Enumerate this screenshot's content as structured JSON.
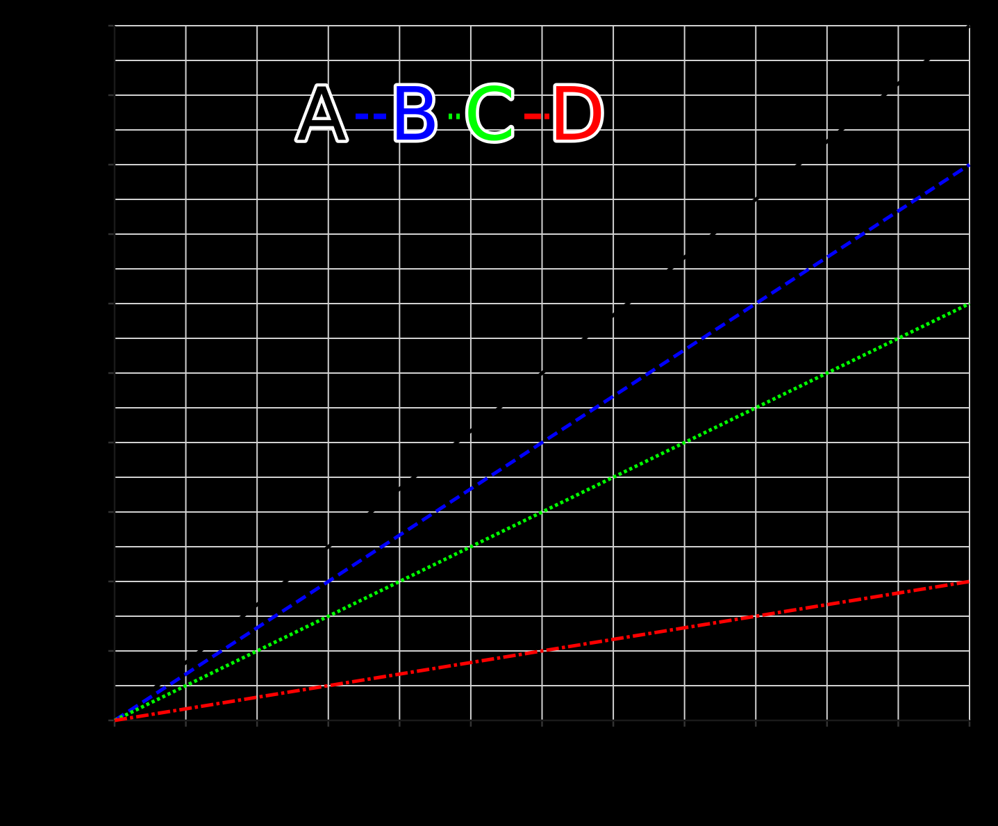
{
  "figure": {
    "background_color": "#000000",
    "grid_color": "#d2d2d2",
    "spine_color": "#1a1a1a",
    "tick_color": "#333333"
  },
  "legend": {
    "orientation": "horizontal",
    "location": "upper center-left",
    "text_outline_color": "#ffffff",
    "entries": [
      {
        "label": "A",
        "color": "#000000",
        "linestyle": "solid"
      },
      {
        "label": "B",
        "color": "#0000ff",
        "linestyle": "dashed"
      },
      {
        "label": "C",
        "color": "#00ff00",
        "linestyle": "dotted"
      },
      {
        "label": "D",
        "color": "#ff0000",
        "linestyle": "dashdot"
      }
    ]
  },
  "chart_data": {
    "type": "line",
    "title": "",
    "xlabel": "",
    "ylabel": "",
    "xlim": [
      0,
      12
    ],
    "ylim": [
      0,
      20
    ],
    "grid": true,
    "x_gridline_step": 1,
    "y_gridline_step": 1,
    "x_tick_step": 1,
    "y_tick_step": 2,
    "legend_position": "upper left, horizontal row",
    "series": [
      {
        "name": "A",
        "color": "#000000",
        "linestyle": "solid",
        "x": [
          0,
          12
        ],
        "y": [
          0,
          20
        ]
      },
      {
        "name": "B",
        "color": "#0000ff",
        "linestyle": "dashed",
        "x": [
          0,
          12
        ],
        "y": [
          0,
          16
        ]
      },
      {
        "name": "C",
        "color": "#00ff00",
        "linestyle": "dotted",
        "x": [
          0,
          12
        ],
        "y": [
          0,
          12
        ]
      },
      {
        "name": "D",
        "color": "#ff0000",
        "linestyle": "dashdot",
        "x": [
          0,
          12
        ],
        "y": [
          0,
          4
        ]
      }
    ]
  }
}
